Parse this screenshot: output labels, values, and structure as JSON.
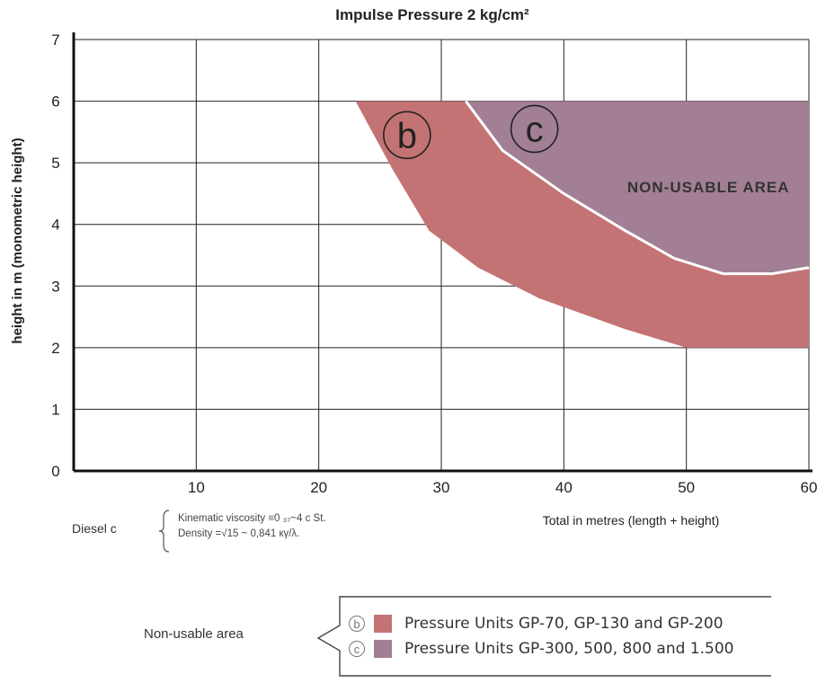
{
  "chart_data": {
    "type": "area",
    "title": "Impulse Pressure 2 kg/cm²",
    "xlabel": "Total in metres (length + height)",
    "ylabel": "height in m (monometric height)",
    "xlim": [
      0,
      60
    ],
    "ylim": [
      0,
      7
    ],
    "x_ticks": [
      "10",
      "20",
      "30",
      "40",
      "50",
      "60"
    ],
    "y_ticks": [
      "0",
      "1",
      "2",
      "3",
      "4",
      "5",
      "6",
      "7"
    ],
    "grid": true,
    "region_labels": {
      "b": "b",
      "c": "c",
      "non_usable": "NON-USABLE AREA"
    },
    "series": [
      {
        "name": "Pressure Units GP-70, GP-130 and GP-200",
        "key": "b",
        "color": "#c47374",
        "boundary": [
          [
            23,
            6.0
          ],
          [
            26,
            4.9
          ],
          [
            29,
            3.9
          ],
          [
            33,
            3.3
          ],
          [
            38,
            2.8
          ],
          [
            45,
            2.3
          ],
          [
            50,
            2.0
          ],
          [
            55,
            2.0
          ],
          [
            60,
            2.0
          ]
        ]
      },
      {
        "name": "Pressure Units GP-300, 500, 800 and 1.500",
        "key": "c",
        "color": "#a27f94",
        "boundary": [
          [
            32,
            6.0
          ],
          [
            35,
            5.2
          ],
          [
            40,
            4.5
          ],
          [
            45,
            3.9
          ],
          [
            49,
            3.45
          ],
          [
            53,
            3.2
          ],
          [
            57,
            3.2
          ],
          [
            60,
            3.3
          ]
        ]
      }
    ]
  },
  "fluid_note": {
    "label": "Diesel c",
    "viscosity": "Kinematic viscosity ≡0   ₃₇~4 c St.",
    "density": "Density =√15 ~ 0,841 кγ/λ."
  },
  "legend": {
    "side_label": "Non-usable area",
    "items": [
      {
        "letter": "b",
        "text": "Pressure Units GP-70, GP-130 and GP-200",
        "color": "#c47374"
      },
      {
        "letter": "c",
        "text": "Pressure Units GP-300, 500, 800 and 1.500",
        "color": "#a27f94"
      }
    ]
  }
}
